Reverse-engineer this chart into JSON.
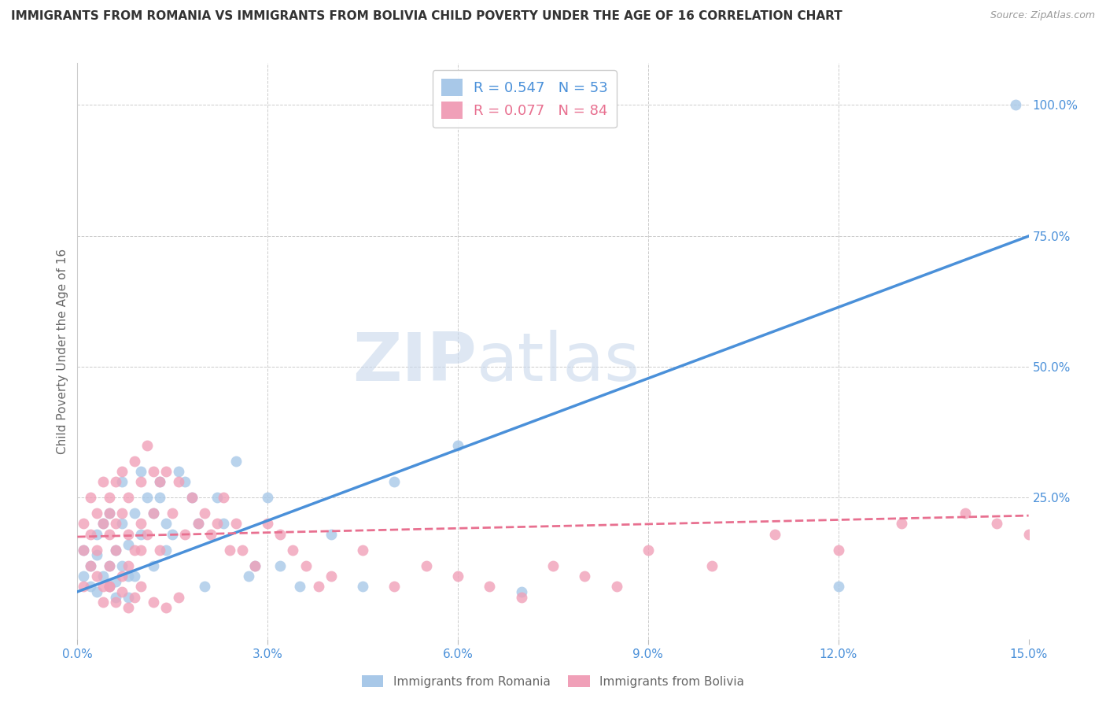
{
  "title": "IMMIGRANTS FROM ROMANIA VS IMMIGRANTS FROM BOLIVIA CHILD POVERTY UNDER THE AGE OF 16 CORRELATION CHART",
  "source": "Source: ZipAtlas.com",
  "ylabel": "Child Poverty Under the Age of 16",
  "xlim": [
    0.0,
    0.15
  ],
  "ylim": [
    -0.02,
    1.08
  ],
  "xticks": [
    0.0,
    0.03,
    0.06,
    0.09,
    0.12,
    0.15
  ],
  "xticklabels": [
    "0.0%",
    "3.0%",
    "6.0%",
    "9.0%",
    "12.0%",
    "15.0%"
  ],
  "yticks_right": [
    0.25,
    0.5,
    0.75,
    1.0
  ],
  "yticklabels_right": [
    "25.0%",
    "50.0%",
    "75.0%",
    "100.0%"
  ],
  "romania_color": "#a8c8e8",
  "bolivia_color": "#f0a0b8",
  "romania_line_color": "#4a90d9",
  "bolivia_line_color": "#e87090",
  "romania_R": 0.547,
  "romania_N": 53,
  "bolivia_R": 0.077,
  "bolivia_N": 84,
  "legend_label_romania": "Immigrants from Romania",
  "legend_label_bolivia": "Immigrants from Bolivia",
  "watermark_zip": "ZIP",
  "watermark_atlas": "atlas",
  "background_color": "#ffffff",
  "grid_color": "#cccccc",
  "title_fontsize": 11,
  "axis_label_fontsize": 11,
  "tick_fontsize": 11,
  "romania_line_slope": 4.53,
  "romania_line_intercept": 0.07,
  "bolivia_line_slope": 0.27,
  "bolivia_line_intercept": 0.175,
  "romania_points_x": [
    0.001,
    0.001,
    0.002,
    0.002,
    0.003,
    0.003,
    0.003,
    0.004,
    0.004,
    0.005,
    0.005,
    0.005,
    0.006,
    0.006,
    0.006,
    0.007,
    0.007,
    0.007,
    0.008,
    0.008,
    0.008,
    0.009,
    0.009,
    0.01,
    0.01,
    0.011,
    0.012,
    0.012,
    0.013,
    0.013,
    0.014,
    0.014,
    0.015,
    0.016,
    0.017,
    0.018,
    0.019,
    0.02,
    0.022,
    0.023,
    0.025,
    0.027,
    0.028,
    0.03,
    0.032,
    0.035,
    0.04,
    0.045,
    0.05,
    0.06,
    0.07,
    0.12,
    0.148
  ],
  "romania_points_y": [
    0.1,
    0.15,
    0.08,
    0.12,
    0.14,
    0.07,
    0.18,
    0.1,
    0.2,
    0.08,
    0.22,
    0.12,
    0.09,
    0.15,
    0.06,
    0.28,
    0.12,
    0.2,
    0.1,
    0.16,
    0.06,
    0.22,
    0.1,
    0.18,
    0.3,
    0.25,
    0.22,
    0.12,
    0.28,
    0.25,
    0.2,
    0.15,
    0.18,
    0.3,
    0.28,
    0.25,
    0.2,
    0.08,
    0.25,
    0.2,
    0.32,
    0.1,
    0.12,
    0.25,
    0.12,
    0.08,
    0.18,
    0.08,
    0.28,
    0.35,
    0.07,
    0.08,
    1.0
  ],
  "bolivia_points_x": [
    0.001,
    0.001,
    0.001,
    0.002,
    0.002,
    0.002,
    0.003,
    0.003,
    0.003,
    0.004,
    0.004,
    0.004,
    0.005,
    0.005,
    0.005,
    0.005,
    0.005,
    0.006,
    0.006,
    0.006,
    0.007,
    0.007,
    0.007,
    0.008,
    0.008,
    0.008,
    0.009,
    0.009,
    0.01,
    0.01,
    0.01,
    0.011,
    0.011,
    0.012,
    0.012,
    0.013,
    0.013,
    0.014,
    0.015,
    0.016,
    0.017,
    0.018,
    0.019,
    0.02,
    0.021,
    0.022,
    0.023,
    0.024,
    0.025,
    0.026,
    0.028,
    0.03,
    0.032,
    0.034,
    0.036,
    0.038,
    0.04,
    0.045,
    0.05,
    0.055,
    0.06,
    0.065,
    0.07,
    0.075,
    0.08,
    0.085,
    0.09,
    0.1,
    0.11,
    0.12,
    0.13,
    0.14,
    0.145,
    0.15,
    0.004,
    0.005,
    0.006,
    0.007,
    0.008,
    0.009,
    0.01,
    0.012,
    0.014,
    0.016
  ],
  "bolivia_points_y": [
    0.2,
    0.15,
    0.08,
    0.25,
    0.12,
    0.18,
    0.22,
    0.15,
    0.1,
    0.28,
    0.2,
    0.08,
    0.25,
    0.18,
    0.12,
    0.08,
    0.22,
    0.28,
    0.15,
    0.2,
    0.3,
    0.22,
    0.1,
    0.25,
    0.18,
    0.12,
    0.32,
    0.15,
    0.28,
    0.2,
    0.15,
    0.35,
    0.18,
    0.3,
    0.22,
    0.28,
    0.15,
    0.3,
    0.22,
    0.28,
    0.18,
    0.25,
    0.2,
    0.22,
    0.18,
    0.2,
    0.25,
    0.15,
    0.2,
    0.15,
    0.12,
    0.2,
    0.18,
    0.15,
    0.12,
    0.08,
    0.1,
    0.15,
    0.08,
    0.12,
    0.1,
    0.08,
    0.06,
    0.12,
    0.1,
    0.08,
    0.15,
    0.12,
    0.18,
    0.15,
    0.2,
    0.22,
    0.2,
    0.18,
    0.05,
    0.08,
    0.05,
    0.07,
    0.04,
    0.06,
    0.08,
    0.05,
    0.04,
    0.06
  ]
}
